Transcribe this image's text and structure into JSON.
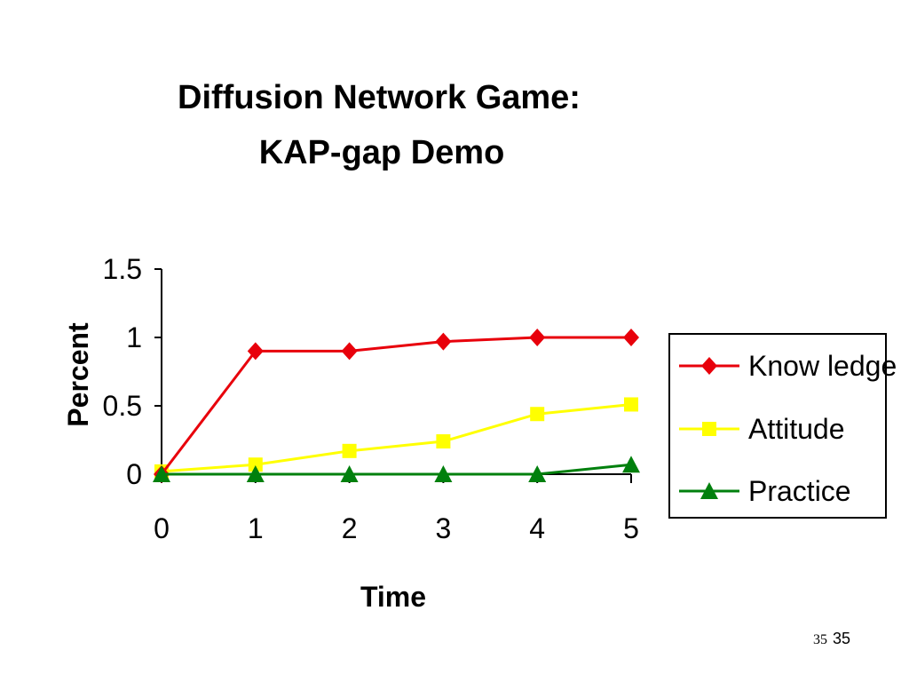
{
  "slide": {
    "page_number_small": "35",
    "page_number": "35"
  },
  "chart_data": {
    "type": "line",
    "title_line1": "Diffusion Network Game:",
    "title_line2": "KAP-gap Demo",
    "xlabel": "Time",
    "ylabel": "Percent",
    "x": [
      0,
      1,
      2,
      3,
      4,
      5
    ],
    "xticks": [
      "0",
      "1",
      "2",
      "3",
      "4",
      "5"
    ],
    "yticks": [
      "0",
      "0.5",
      "1",
      "1.5"
    ],
    "ytick_values": [
      0,
      0.5,
      1,
      1.5
    ],
    "ylim": [
      0,
      1.5
    ],
    "xlim": [
      0,
      5
    ],
    "grid": false,
    "legend_position": "right",
    "series": [
      {
        "name": "Know ledge",
        "color": "#e8000b",
        "marker": "diamond",
        "values": [
          0.0,
          0.9,
          0.9,
          0.97,
          1.0,
          1.0
        ]
      },
      {
        "name": "Attitude",
        "color": "#ffff00",
        "marker": "square",
        "values": [
          0.02,
          0.07,
          0.17,
          0.24,
          0.44,
          0.51
        ]
      },
      {
        "name": "Practice",
        "color": "#00800d",
        "marker": "triangle",
        "values": [
          0.0,
          0.0,
          0.0,
          0.0,
          0.0,
          0.07
        ]
      }
    ]
  }
}
